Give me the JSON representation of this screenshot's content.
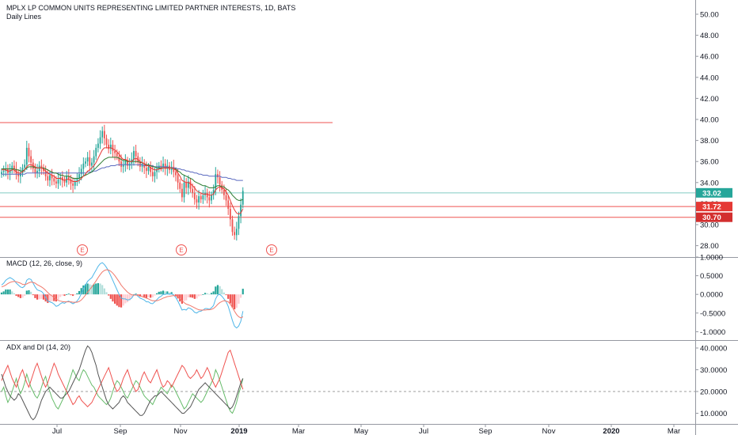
{
  "header": {
    "title": "MPLX LP COMMON UNITS REPRESENTING LIMITED PARTNER INTERESTS, 1D, BATS",
    "subtitle": "Daily Lines"
  },
  "panes": {
    "macd_label": "MACD (12, 26, close, 9)",
    "adx_label": "ADX and DI (14, 20)"
  },
  "colors": {
    "up": "#26a69a",
    "down": "#ef5350",
    "ema_red": "#e53935",
    "ema_green": "#2e7d32",
    "ema_purple": "#5c6bc0",
    "macd_line": "#4fb6e8",
    "signal_line": "#f0796c",
    "hline_red": "#ef5350",
    "hline_teal": "#80cbc4",
    "adx_line": "#555555",
    "di_plus": "#66bb6a",
    "di_minus": "#ef5350"
  },
  "chart_data": [
    {
      "type": "candlestick",
      "title": "MPLX LP COMMON UNITS REPRESENTING LIMITED PARTNER INTERESTS, 1D, BATS",
      "x_ticks": [
        "Jul",
        "Sep",
        "Nov",
        "2019",
        "Mar",
        "May",
        "Jul",
        "Sep",
        "Nov",
        "2020",
        "Mar"
      ],
      "y_ticks": [
        "50.00",
        "48.00",
        "46.00",
        "44.00",
        "42.00",
        "40.00",
        "38.00",
        "36.00",
        "34.00",
        "32.00",
        "30.00",
        "28.00"
      ],
      "ylim": [
        27.0,
        51.0
      ],
      "price_labels": [
        {
          "value": 33.02,
          "text": "33.02",
          "color": "#26a69a"
        },
        {
          "value": 31.72,
          "text": "31.72",
          "color": "#e53935"
        },
        {
          "value": 30.7,
          "text": "30.70",
          "color": "#d32f2f"
        }
      ],
      "horizontal_lines": [
        {
          "value": 39.7,
          "color": "#ef5350"
        },
        {
          "value": 33.02,
          "color": "#80cbc4"
        },
        {
          "value": 31.72,
          "color": "#ef5350"
        },
        {
          "value": 30.7,
          "color": "#ef5350"
        }
      ],
      "earnings_markers": [
        "E",
        "E",
        "E"
      ],
      "close_series": [
        35.0,
        35.1,
        35.3,
        34.9,
        35.2,
        35.6,
        35.3,
        34.8,
        34.6,
        34.9,
        35.4,
        35.7,
        37.3,
        36.5,
        35.9,
        35.3,
        34.9,
        35.1,
        35.6,
        35.4,
        35.1,
        34.6,
        34.2,
        34.7,
        34.4,
        34.1,
        33.9,
        34.3,
        34.5,
        34.2,
        34.0,
        34.6,
        34.3,
        33.9,
        33.7,
        34.1,
        34.4,
        34.8,
        35.3,
        35.8,
        36.0,
        36.4,
        35.6,
        35.9,
        36.5,
        37.3,
        37.7,
        38.3,
        38.9,
        38.2,
        37.6,
        37.2,
        37.6,
        37.0,
        36.8,
        36.5,
        36.0,
        35.5,
        35.7,
        36.1,
        35.6,
        35.8,
        36.2,
        37.0,
        36.5,
        35.9,
        35.5,
        35.8,
        35.4,
        35.1,
        35.5,
        35.0,
        34.6,
        35.0,
        35.3,
        35.6,
        35.5,
        35.8,
        35.3,
        35.6,
        35.2,
        35.5,
        35.0,
        34.7,
        34.0,
        33.4,
        32.6,
        34.0,
        33.5,
        34.1,
        33.4,
        33.0,
        32.4,
        32.1,
        32.7,
        32.4,
        32.8,
        33.0,
        32.6,
        32.3,
        32.8,
        33.3,
        34.8,
        34.5,
        33.8,
        33.3,
        32.8,
        32.3,
        31.5,
        30.5,
        29.3,
        29.0,
        29.6,
        30.8,
        31.9,
        33.2
      ],
      "ema_red_series": [
        35.2,
        35.2,
        35.2,
        35.1,
        35.1,
        35.2,
        35.2,
        35.0,
        34.9,
        34.9,
        35.0,
        35.2,
        35.5,
        35.7,
        35.7,
        35.6,
        35.5,
        35.4,
        35.4,
        35.4,
        35.3,
        35.1,
        34.9,
        34.8,
        34.7,
        34.6,
        34.4,
        34.4,
        34.4,
        34.3,
        34.2,
        34.3,
        34.3,
        34.2,
        34.1,
        34.1,
        34.1,
        34.2,
        34.4,
        34.6,
        34.8,
        35.1,
        35.2,
        35.4,
        35.6,
        35.9,
        36.3,
        36.7,
        37.1,
        37.3,
        37.3,
        37.3,
        37.3,
        37.2,
        37.1,
        36.9,
        36.7,
        36.4,
        36.2,
        36.2,
        36.1,
        36.0,
        36.0,
        36.2,
        36.3,
        36.2,
        36.0,
        35.9,
        35.8,
        35.6,
        35.6,
        35.4,
        35.3,
        35.2,
        35.2,
        35.3,
        35.3,
        35.4,
        35.4,
        35.4,
        35.4,
        35.4,
        35.3,
        35.2,
        34.9,
        34.6,
        34.2,
        34.1,
        34.0,
        34.0,
        33.9,
        33.7,
        33.5,
        33.2,
        33.1,
        33.0,
        32.9,
        32.9,
        32.9,
        32.8,
        32.8,
        32.9,
        33.3,
        33.5,
        33.6,
        33.5,
        33.4,
        33.1,
        32.8,
        32.3,
        31.8,
        31.4,
        31.1,
        31.0,
        31.1,
        31.5
      ],
      "ema_green_series": [
        35.3,
        35.3,
        35.3,
        35.3,
        35.3,
        35.3,
        35.3,
        35.2,
        35.2,
        35.1,
        35.1,
        35.2,
        35.4,
        35.5,
        35.5,
        35.5,
        35.4,
        35.4,
        35.4,
        35.4,
        35.4,
        35.3,
        35.2,
        35.1,
        35.0,
        34.9,
        34.9,
        34.8,
        34.7,
        34.7,
        34.6,
        34.6,
        34.6,
        34.5,
        34.4,
        34.4,
        34.4,
        34.4,
        34.5,
        34.6,
        34.7,
        34.8,
        34.9,
        35.0,
        35.2,
        35.4,
        35.6,
        35.8,
        36.0,
        36.2,
        36.3,
        36.4,
        36.4,
        36.4,
        36.4,
        36.4,
        36.3,
        36.2,
        36.1,
        36.1,
        36.0,
        36.0,
        36.0,
        36.0,
        36.0,
        36.0,
        35.9,
        35.9,
        35.8,
        35.7,
        35.7,
        35.6,
        35.5,
        35.5,
        35.4,
        35.4,
        35.4,
        35.4,
        35.4,
        35.4,
        35.4,
        35.4,
        35.3,
        35.3,
        35.1,
        35.0,
        34.8,
        34.7,
        34.6,
        34.5,
        34.4,
        34.3,
        34.1,
        34.0,
        33.9,
        33.8,
        33.7,
        33.7,
        33.6,
        33.5,
        33.5,
        33.5,
        33.6,
        33.7,
        33.7,
        33.6,
        33.6,
        33.4,
        33.3,
        33.1,
        32.8,
        32.6,
        32.4,
        32.3,
        32.3,
        32.4
      ],
      "ema_purple_series": [
        34.8,
        34.8,
        34.8,
        34.8,
        34.8,
        34.8,
        34.8,
        34.8,
        34.8,
        34.8,
        34.8,
        34.8,
        34.9,
        34.9,
        34.9,
        34.9,
        34.9,
        34.9,
        34.9,
        34.9,
        34.9,
        34.9,
        34.9,
        34.9,
        34.9,
        34.9,
        34.9,
        34.9,
        34.9,
        34.9,
        34.9,
        34.9,
        34.9,
        34.9,
        34.9,
        34.9,
        34.9,
        34.9,
        34.9,
        34.9,
        34.9,
        35.0,
        35.0,
        35.0,
        35.1,
        35.1,
        35.2,
        35.3,
        35.4,
        35.4,
        35.5,
        35.5,
        35.6,
        35.6,
        35.6,
        35.7,
        35.7,
        35.7,
        35.7,
        35.7,
        35.7,
        35.7,
        35.7,
        35.7,
        35.7,
        35.7,
        35.7,
        35.7,
        35.6,
        35.6,
        35.6,
        35.6,
        35.6,
        35.5,
        35.5,
        35.5,
        35.5,
        35.5,
        35.5,
        35.5,
        35.4,
        35.4,
        35.4,
        35.4,
        35.3,
        35.3,
        35.2,
        35.2,
        35.1,
        35.1,
        35.0,
        35.0,
        34.9,
        34.9,
        34.8,
        34.8,
        34.7,
        34.7,
        34.7,
        34.6,
        34.6,
        34.6,
        34.6,
        34.6,
        34.6,
        34.5,
        34.5,
        34.5,
        34.4,
        34.4,
        34.3,
        34.3,
        34.2,
        34.2,
        34.2,
        34.2
      ]
    },
    {
      "type": "line",
      "title": "MACD (12, 26, close, 9)",
      "y_ticks": [
        "1.0000",
        "0.5000",
        "0.0000",
        "-0.5000",
        "-1.0000"
      ],
      "ylim": [
        -1.15,
        1.05
      ],
      "macd_series": [
        0.25,
        0.3,
        0.38,
        0.42,
        0.45,
        0.42,
        0.38,
        0.3,
        0.25,
        0.2,
        0.18,
        0.22,
        0.38,
        0.42,
        0.4,
        0.3,
        0.2,
        0.12,
        0.1,
        0.08,
        0.02,
        -0.08,
        -0.18,
        -0.2,
        -0.22,
        -0.26,
        -0.32,
        -0.3,
        -0.25,
        -0.22,
        -0.24,
        -0.2,
        -0.18,
        -0.22,
        -0.25,
        -0.22,
        -0.18,
        -0.1,
        0.02,
        0.15,
        0.25,
        0.35,
        0.4,
        0.45,
        0.55,
        0.65,
        0.75,
        0.82,
        0.85,
        0.8,
        0.72,
        0.62,
        0.5,
        0.38,
        0.25,
        0.12,
        0.0,
        -0.1,
        -0.12,
        -0.12,
        -0.15,
        -0.14,
        -0.1,
        -0.02,
        0.0,
        -0.05,
        -0.1,
        -0.12,
        -0.15,
        -0.2,
        -0.2,
        -0.24,
        -0.25,
        -0.2,
        -0.14,
        -0.08,
        -0.05,
        0.0,
        0.0,
        0.02,
        0.0,
        0.02,
        -0.02,
        -0.08,
        -0.18,
        -0.3,
        -0.42,
        -0.4,
        -0.42,
        -0.36,
        -0.38,
        -0.42,
        -0.48,
        -0.5,
        -0.46,
        -0.45,
        -0.42,
        -0.38,
        -0.38,
        -0.4,
        -0.36,
        -0.3,
        -0.12,
        -0.02,
        0.0,
        -0.05,
        -0.12,
        -0.2,
        -0.32,
        -0.5,
        -0.7,
        -0.85,
        -0.9,
        -0.85,
        -0.72,
        -0.45
      ],
      "signal_series": [
        0.2,
        0.22,
        0.25,
        0.29,
        0.32,
        0.34,
        0.35,
        0.34,
        0.32,
        0.3,
        0.27,
        0.26,
        0.28,
        0.31,
        0.33,
        0.32,
        0.3,
        0.26,
        0.23,
        0.2,
        0.16,
        0.11,
        0.05,
        0.0,
        -0.04,
        -0.08,
        -0.13,
        -0.16,
        -0.18,
        -0.19,
        -0.2,
        -0.2,
        -0.2,
        -0.2,
        -0.21,
        -0.21,
        -0.21,
        -0.19,
        -0.15,
        -0.09,
        -0.02,
        0.06,
        0.13,
        0.2,
        0.28,
        0.36,
        0.45,
        0.53,
        0.6,
        0.64,
        0.66,
        0.65,
        0.62,
        0.57,
        0.5,
        0.42,
        0.34,
        0.25,
        0.18,
        0.12,
        0.06,
        0.02,
        -0.01,
        -0.02,
        -0.02,
        -0.02,
        -0.04,
        -0.06,
        -0.08,
        -0.1,
        -0.12,
        -0.15,
        -0.17,
        -0.17,
        -0.17,
        -0.15,
        -0.13,
        -0.1,
        -0.08,
        -0.06,
        -0.05,
        -0.04,
        -0.03,
        -0.04,
        -0.07,
        -0.11,
        -0.17,
        -0.22,
        -0.26,
        -0.28,
        -0.3,
        -0.33,
        -0.36,
        -0.39,
        -0.41,
        -0.42,
        -0.42,
        -0.42,
        -0.41,
        -0.41,
        -0.4,
        -0.38,
        -0.33,
        -0.27,
        -0.22,
        -0.19,
        -0.17,
        -0.18,
        -0.2,
        -0.26,
        -0.35,
        -0.45,
        -0.54,
        -0.6,
        -0.63,
        -0.6
      ]
    },
    {
      "type": "line",
      "title": "ADX and DI (14, 20)",
      "y_ticks": [
        "40.0000",
        "30.0000",
        "20.0000",
        "10.0000"
      ],
      "ylim": [
        5,
        42
      ],
      "threshold": 20,
      "adx_series": [
        28,
        25,
        22,
        20,
        18,
        17,
        16,
        17,
        19,
        18,
        16,
        14,
        12,
        10,
        8,
        7,
        8,
        10,
        13,
        16,
        18,
        20,
        21,
        22,
        21,
        20,
        19,
        18,
        17,
        17,
        18,
        19,
        20,
        22,
        24,
        26,
        28,
        30,
        33,
        36,
        39,
        41,
        40,
        38,
        35,
        32,
        28,
        25,
        22,
        19,
        16,
        14,
        13,
        12,
        13,
        14,
        15,
        17,
        18,
        17,
        15,
        14,
        13,
        12,
        11,
        10,
        9,
        9,
        10,
        12,
        14,
        16,
        17,
        18,
        18,
        19,
        20,
        19,
        18,
        17,
        16,
        15,
        14,
        13,
        12,
        11,
        10,
        10,
        11,
        12,
        13,
        15,
        17,
        19,
        21,
        22,
        23,
        24,
        23,
        22,
        21,
        20,
        19,
        18,
        17,
        16,
        15,
        14,
        13,
        12,
        13,
        15,
        18,
        21,
        24,
        26
      ],
      "di_plus_series": [
        20,
        22,
        18,
        15,
        17,
        20,
        23,
        26,
        22,
        19,
        21,
        24,
        28,
        25,
        22,
        20,
        18,
        17,
        19,
        22,
        25,
        27,
        23,
        20,
        17,
        15,
        13,
        12,
        14,
        16,
        18,
        21,
        24,
        27,
        30,
        28,
        26,
        25,
        28,
        30,
        29,
        27,
        25,
        23,
        22,
        20,
        18,
        17,
        16,
        15,
        14,
        15,
        17,
        20,
        23,
        25,
        24,
        22,
        20,
        18,
        17,
        19,
        21,
        23,
        25,
        24,
        22,
        20,
        18,
        17,
        16,
        15,
        14,
        16,
        18,
        20,
        22,
        21,
        20,
        19,
        21,
        23,
        22,
        20,
        18,
        16,
        14,
        12,
        13,
        15,
        17,
        19,
        18,
        17,
        16,
        15,
        16,
        18,
        20,
        22,
        24,
        26,
        30,
        28,
        25,
        22,
        19,
        16,
        13,
        11,
        10,
        12,
        15,
        19,
        22,
        26
      ],
      "di_minus_series": [
        25,
        28,
        30,
        32,
        29,
        26,
        24,
        22,
        25,
        28,
        30,
        27,
        24,
        22,
        25,
        28,
        31,
        33,
        30,
        27,
        24,
        22,
        24,
        27,
        30,
        33,
        31,
        28,
        26,
        24,
        22,
        20,
        18,
        16,
        14,
        15,
        17,
        18,
        16,
        15,
        14,
        13,
        14,
        15,
        17,
        19,
        21,
        23,
        25,
        27,
        29,
        31,
        28,
        25,
        22,
        20,
        21,
        23,
        26,
        28,
        30,
        27,
        24,
        22,
        20,
        21,
        24,
        27,
        29,
        27,
        25,
        24,
        26,
        28,
        30,
        27,
        24,
        22,
        23,
        25,
        24,
        22,
        24,
        26,
        28,
        30,
        32,
        31,
        29,
        27,
        26,
        27,
        28,
        30,
        28,
        26,
        27,
        29,
        31,
        29,
        26,
        24,
        22,
        24,
        26,
        29,
        32,
        35,
        38,
        39,
        36,
        33,
        30,
        27,
        24,
        21
      ]
    }
  ]
}
